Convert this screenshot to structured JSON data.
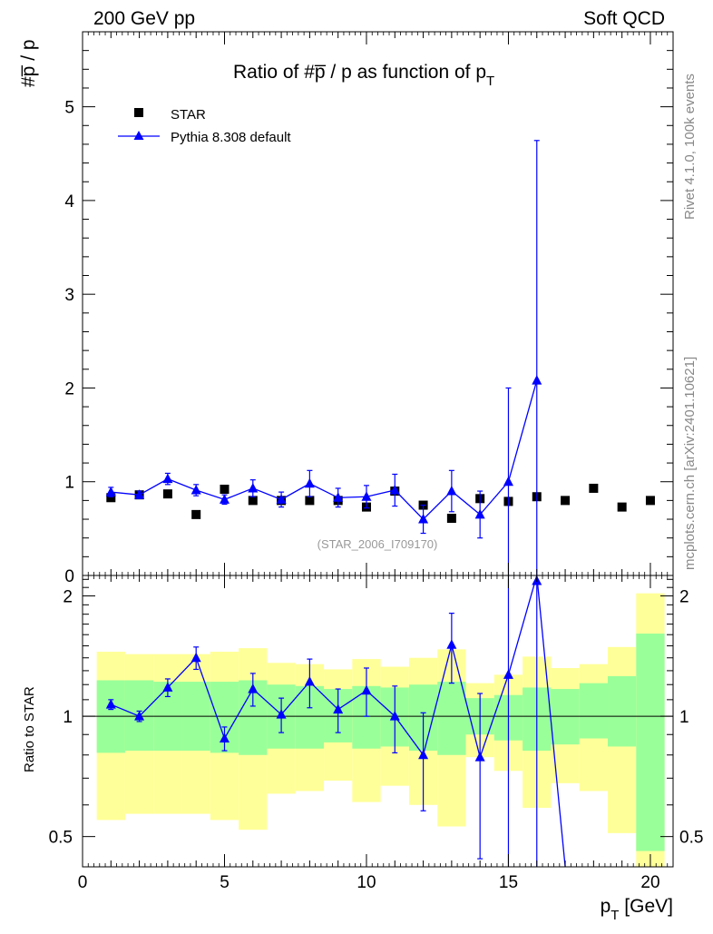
{
  "header": {
    "left": "200 GeV pp",
    "right": "Soft QCD",
    "side_rivet": "Rivet 4.1.0,  100k events",
    "side_mcplots": "mcplots.cern.ch [arXiv:2401.10621]"
  },
  "colors": {
    "mc": "#0000ff",
    "data": "#000000",
    "band_inner": "#99ff99",
    "band_outer": "#ffff99"
  },
  "chart_data": [
    {
      "type": "scatter",
      "title": "Ratio of #p̅ / p as function of p",
      "title_sub": "T",
      "ylabel": "#p̅ / p",
      "xlim": [
        0,
        20.8
      ],
      "ylim": [
        0,
        5.8
      ],
      "yticks": [
        0,
        1,
        2,
        3,
        4,
        5
      ],
      "watermark": "(STAR_2006_I709170)",
      "legend": {
        "position": "top-left",
        "entries": [
          "STAR",
          "Pythia 8.308 default"
        ]
      },
      "series": [
        {
          "name": "STAR",
          "marker": "square",
          "x": [
            1,
            2,
            3,
            4,
            5,
            6,
            7,
            8,
            9,
            10,
            11,
            12,
            13,
            14,
            15,
            16,
            17,
            18,
            19,
            20
          ],
          "y": [
            0.83,
            0.86,
            0.87,
            0.65,
            0.92,
            0.8,
            0.8,
            0.8,
            0.8,
            0.73,
            0.9,
            0.75,
            0.61,
            0.82,
            0.79,
            0.84,
            0.8,
            0.93,
            0.73,
            0.8
          ]
        },
        {
          "name": "Pythia 8.308 default",
          "marker": "triangle",
          "x": [
            1,
            2,
            3,
            4,
            5,
            6,
            7,
            8,
            9,
            10,
            11,
            12,
            13,
            14,
            15,
            16
          ],
          "y": [
            0.89,
            0.86,
            1.03,
            0.91,
            0.81,
            0.93,
            0.81,
            0.98,
            0.83,
            0.84,
            0.91,
            0.6,
            0.9,
            0.65,
            1.0,
            2.08
          ],
          "yerr": [
            0.05,
            0.04,
            0.06,
            0.06,
            0.05,
            0.09,
            0.08,
            0.14,
            0.1,
            0.12,
            0.17,
            0.15,
            0.22,
            0.25,
            1.0,
            2.56
          ]
        }
      ]
    },
    {
      "type": "scatter",
      "ylabel": "Ratio to STAR",
      "xlabel": "p",
      "xlabel_sub": "T",
      "xlabel_unit": " [GeV]",
      "xlim": [
        0,
        20.8
      ],
      "ylim": [
        0.42,
        2.25
      ],
      "yscale": "log",
      "xticks": [
        0,
        5,
        10,
        15,
        20
      ],
      "yticks": [
        0.5,
        1,
        2
      ],
      "ytick_labels": [
        "0.5",
        "1",
        "2"
      ],
      "reference_line": 1,
      "bands": {
        "edges": [
          0.5,
          1.5,
          2.5,
          3.5,
          4.5,
          5.5,
          6.5,
          7.5,
          8.5,
          9.5,
          10.5,
          11.5,
          12.5,
          13.5,
          14.5,
          15.5,
          16.5,
          17.5,
          18.5,
          19.5,
          20.5
        ],
        "inner_low": [
          0.81,
          0.82,
          0.82,
          0.82,
          0.81,
          0.8,
          0.83,
          0.83,
          0.86,
          0.83,
          0.84,
          0.82,
          0.8,
          0.9,
          0.87,
          0.82,
          0.85,
          0.88,
          0.84,
          0.46
        ],
        "inner_high": [
          1.23,
          1.23,
          1.22,
          1.22,
          1.22,
          1.23,
          1.2,
          1.19,
          1.17,
          1.19,
          1.18,
          1.2,
          1.22,
          1.11,
          1.13,
          1.18,
          1.17,
          1.21,
          1.26,
          1.61
        ],
        "outer_low": [
          0.55,
          0.57,
          0.57,
          0.57,
          0.55,
          0.52,
          0.64,
          0.65,
          0.69,
          0.61,
          0.67,
          0.6,
          0.53,
          0.79,
          0.73,
          0.59,
          0.68,
          0.65,
          0.51,
          0.38
        ],
        "outer_high": [
          1.45,
          1.43,
          1.43,
          1.43,
          1.45,
          1.48,
          1.36,
          1.35,
          1.31,
          1.39,
          1.33,
          1.4,
          1.47,
          1.21,
          1.27,
          1.41,
          1.32,
          1.35,
          1.49,
          2.03
        ]
      },
      "series": [
        {
          "name": "Pythia 8.308 default",
          "x": [
            1,
            2,
            3,
            4,
            5,
            6,
            7,
            8,
            9,
            10,
            11,
            12,
            13,
            14,
            15,
            16,
            17
          ],
          "y": [
            1.07,
            1.0,
            1.18,
            1.4,
            0.88,
            1.17,
            1.01,
            1.22,
            1.04,
            1.16,
            1.0,
            0.8,
            1.51,
            0.79,
            1.27,
            2.25,
            0.42
          ],
          "yerr": [
            0.03,
            0.03,
            0.06,
            0.09,
            0.06,
            0.11,
            0.1,
            0.17,
            0.13,
            0.16,
            0.19,
            0.22,
            0.3,
            0.35,
            1.27,
            2.5,
            0.0
          ]
        }
      ]
    }
  ]
}
